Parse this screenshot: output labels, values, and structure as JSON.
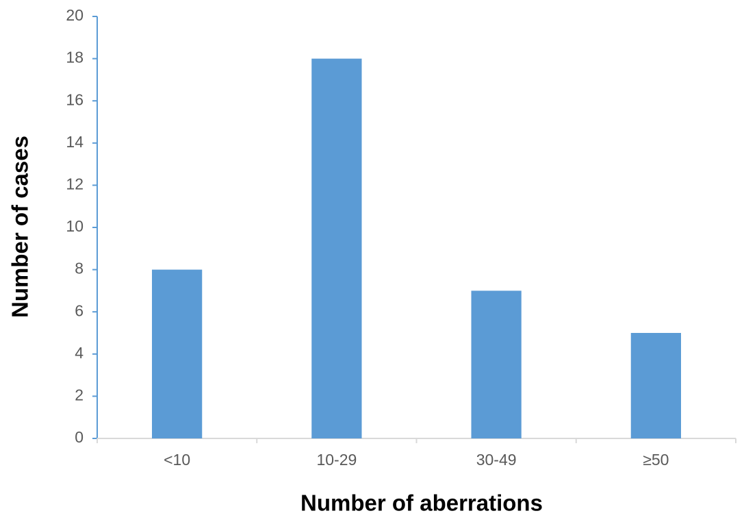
{
  "chart_data": {
    "type": "bar",
    "x_label": "Number of aberrations",
    "y_label": "Number of cases",
    "categories": [
      "<10",
      "10-29",
      "30-49",
      "≥50"
    ],
    "values": [
      8,
      18,
      7,
      5
    ],
    "color": "#5b9bd5",
    "ylim": [
      0,
      20
    ],
    "yticks": [
      0,
      2,
      4,
      6,
      8,
      10,
      12,
      14,
      16,
      18,
      20
    ],
    "grid": false
  }
}
